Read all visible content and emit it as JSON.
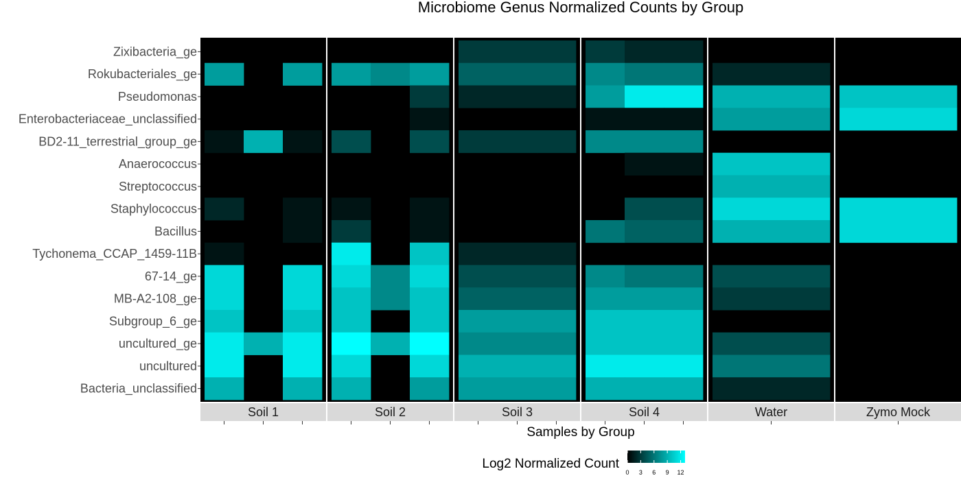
{
  "chart_data": {
    "type": "heatmap",
    "title": "Microbiome Genus Normalized Counts by Group",
    "xlabel": "Samples by Group",
    "ylabel": "",
    "panels": [
      {
        "name": "Soil 1",
        "samples": 3
      },
      {
        "name": "Soil 2",
        "samples": 3
      },
      {
        "name": "Soil 3",
        "samples": 3
      },
      {
        "name": "Soil 4",
        "samples": 3
      },
      {
        "name": "Water",
        "samples": 3
      },
      {
        "name": "Zymo Mock",
        "samples": 3
      }
    ],
    "rows": [
      "Zixibacteria_ge",
      "Rokubacteriales_ge",
      "Pseudomonas",
      "Enterobacteriaceae_unclassified",
      "BD2-11_terrestrial_group_ge",
      "Anaerococcus",
      "Streptococcus",
      "Staphylococcus",
      "Bacillus",
      "Tychonema_CCAP_1459-11B",
      "67-14_ge",
      "MB-A2-108_ge",
      "Subgroup_6_ge",
      "uncultured_ge",
      "uncultured",
      "Bacteria_unclassified"
    ],
    "values": [
      [
        0,
        0,
        0,
        0,
        0,
        0,
        3,
        3,
        3,
        3,
        2,
        2,
        0,
        0,
        0,
        0,
        0,
        0
      ],
      [
        8,
        0,
        8,
        8,
        7,
        8,
        5,
        5,
        5,
        7,
        6,
        6,
        2,
        2,
        2,
        0,
        0,
        0
      ],
      [
        0,
        0,
        0,
        0,
        0,
        3,
        2,
        2,
        2,
        8,
        12,
        12,
        9,
        9,
        9,
        10,
        10,
        10
      ],
      [
        0,
        0,
        0,
        0,
        0,
        1,
        0,
        0,
        0,
        1,
        1,
        1,
        8,
        8,
        8,
        11,
        11,
        11
      ],
      [
        1,
        9,
        1,
        4,
        0,
        4,
        3,
        3,
        3,
        7,
        7,
        7,
        0,
        0,
        0,
        0,
        0,
        0
      ],
      [
        0,
        0,
        0,
        0,
        0,
        0,
        0,
        0,
        0,
        0,
        1,
        1,
        10,
        10,
        10,
        0,
        0,
        0
      ],
      [
        0,
        0,
        0,
        0,
        0,
        0,
        0,
        0,
        0,
        0,
        0,
        0,
        9,
        9,
        9,
        0,
        0,
        0
      ],
      [
        2,
        0,
        1,
        1,
        0,
        1,
        0,
        0,
        0,
        0,
        4,
        4,
        11,
        11,
        11,
        11,
        11,
        11
      ],
      [
        0,
        0,
        1,
        3,
        0,
        1,
        0,
        0,
        0,
        6,
        5,
        5,
        9,
        9,
        9,
        11,
        11,
        11
      ],
      [
        1,
        0,
        0,
        12,
        0,
        10,
        2,
        2,
        2,
        0,
        0,
        0,
        0,
        0,
        0,
        0,
        0,
        0
      ],
      [
        11,
        0,
        11,
        11,
        7,
        11,
        4,
        4,
        4,
        7,
        6,
        6,
        4,
        4,
        4,
        0,
        0,
        0
      ],
      [
        11,
        0,
        11,
        10,
        7,
        10,
        5,
        5,
        5,
        8,
        8,
        8,
        3,
        3,
        3,
        0,
        0,
        0
      ],
      [
        10,
        0,
        10,
        10,
        0,
        10,
        8,
        8,
        8,
        10,
        10,
        10,
        0,
        0,
        0,
        0,
        0,
        0
      ],
      [
        12,
        9,
        12,
        13,
        9,
        13,
        7,
        7,
        7,
        10,
        10,
        10,
        4,
        4,
        4,
        0,
        0,
        0
      ],
      [
        12,
        0,
        12,
        11,
        0,
        11,
        9,
        9,
        9,
        12,
        12,
        12,
        6,
        6,
        6,
        0,
        0,
        0
      ],
      [
        9,
        0,
        9,
        9,
        0,
        8,
        8,
        8,
        8,
        9,
        9,
        9,
        2,
        2,
        2,
        0,
        0,
        0
      ]
    ],
    "legend": {
      "title": "Log2 Normalized Count",
      "ticks": [
        0,
        3,
        6,
        9,
        12
      ],
      "placement": "bottom"
    },
    "color_scale": {
      "low": "#000000",
      "high": "#00ffff",
      "min": 0,
      "max": 13
    },
    "colors": {
      "strip_background": "#d9d9d9",
      "panel_background": "#000000"
    }
  }
}
